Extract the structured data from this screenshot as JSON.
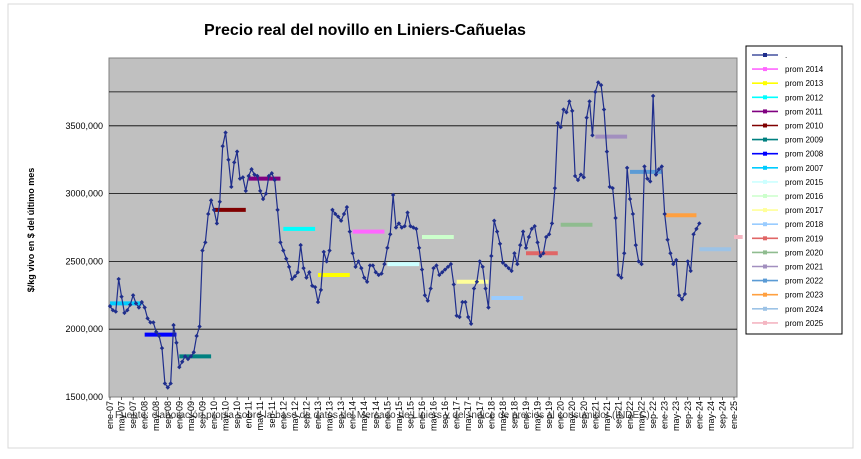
{
  "chart_data": {
    "type": "line",
    "title": "Precio real del novillo en Liniers-Cañuelas",
    "ylabel": "$/kg vivo en $ del último mes",
    "xlabel": "",
    "footnote": "Fuente: elaboración propia sobre la base de datos del Mercado de Liniers y del índice de precios al consumidor (INDEC).",
    "ylim": [
      1500,
      4000
    ],
    "yticks": [
      "1500,000",
      "2000,000",
      "2500,000",
      "3000,000",
      "3500,000"
    ],
    "ytick_values": [
      1500,
      2000,
      2500,
      3000,
      3500
    ],
    "xticks": [
      "ene-07",
      "may-07",
      "sep-07",
      "ene-08",
      "may-08",
      "sep-08",
      "ene-09",
      "may-09",
      "sep-09",
      "ene-10",
      "may-10",
      "sep-10",
      "ene-11",
      "may-11",
      "sep-11",
      "ene-12",
      "may-12",
      "sep-12",
      "ene-13",
      "may-13",
      "sep-13",
      "ene-14",
      "may-14",
      "sep-14",
      "ene-15",
      "may-15",
      "sep-15",
      "ene-16",
      "may-16",
      "sep-16",
      "ene-17",
      "may-17",
      "sep-17",
      "ene-18",
      "may-18",
      "sep-18",
      "ene-19",
      "may-19",
      "sep-19",
      "ene-20",
      "may-20",
      "sep-20",
      "ene-21",
      "may-21",
      "sep-21",
      "ene-22",
      "may-22",
      "sep-22",
      "ene-23",
      "may-23",
      "sep-23",
      "ene-24",
      "may-24",
      "sep-24",
      "ene-25"
    ],
    "grid": true,
    "legend_position": "right",
    "colors": {
      "plot_bg": "#c0c0c0",
      "series": "#1f2e8c",
      "grid": "#000000"
    },
    "series": [
      {
        "name": ".",
        "start": "ene-07",
        "values": [
          2170,
          2140,
          2130,
          2370,
          2240,
          2120,
          2140,
          2180,
          2250,
          2190,
          2160,
          2200,
          2160,
          2080,
          2050,
          2050,
          1980,
          1950,
          1860,
          1600,
          1570,
          1600,
          2030,
          1900,
          1720,
          1760,
          1800,
          1780,
          1800,
          1830,
          1950,
          2020,
          2580,
          2640,
          2850,
          2950,
          2880,
          2780,
          2940,
          3350,
          3450,
          3250,
          3050,
          3230,
          3310,
          3110,
          3120,
          3020,
          3130,
          3180,
          3140,
          3130,
          3020,
          2960,
          3000,
          3130,
          3150,
          3100,
          2880,
          2640,
          2580,
          2520,
          2460,
          2370,
          2390,
          2420,
          2620,
          2450,
          2380,
          2420,
          2320,
          2310,
          2200,
          2290,
          2570,
          2500,
          2580,
          2880,
          2850,
          2830,
          2800,
          2850,
          2900,
          2720,
          2560,
          2460,
          2500,
          2450,
          2380,
          2350,
          2470,
          2470,
          2420,
          2400,
          2410,
          2480,
          2600,
          2700,
          2990,
          2750,
          2780,
          2750,
          2760,
          2860,
          2760,
          2750,
          2740,
          2600,
          2440,
          2250,
          2210,
          2300,
          2450,
          2470,
          2400,
          2420,
          2440,
          2460,
          2480,
          2330,
          2100,
          2090,
          2200,
          2200,
          2090,
          2040,
          2300,
          2350,
          2500,
          2460,
          2300,
          2160,
          2540,
          2800,
          2720,
          2630,
          2490,
          2470,
          2450,
          2430,
          2560,
          2480,
          2620,
          2720,
          2600,
          2680,
          2740,
          2760,
          2640,
          2540,
          2560,
          2680,
          2700,
          2780,
          3040,
          3520,
          3490,
          3620,
          3600,
          3680,
          3610,
          3130,
          3100,
          3140,
          3120,
          3560,
          3680,
          3430,
          3750,
          3820,
          3800,
          3620,
          3310,
          3050,
          3040,
          2820,
          2400,
          2380,
          2560,
          3190,
          2960,
          2850,
          2620,
          2500,
          2480,
          3200,
          3110,
          3090,
          3720,
          3140,
          3180,
          3200,
          2850,
          2660,
          2560,
          2480,
          2510,
          2250,
          2220,
          2260,
          2500,
          2430,
          2700,
          2740,
          2780
        ]
      }
    ],
    "averages": [
      {
        "name": "prom 2014",
        "color": "#ff66ff",
        "value": 2720,
        "start": "ene-14",
        "end": "dic-14"
      },
      {
        "name": "prom 2013",
        "color": "#ffff00",
        "value": 2400,
        "start": "ene-13",
        "end": "dic-13"
      },
      {
        "name": "prom 2012",
        "color": "#00ffff",
        "value": 2740,
        "start": "ene-12",
        "end": "dic-12"
      },
      {
        "name": "prom 2011",
        "color": "#800080",
        "value": 3110,
        "start": "ene-11",
        "end": "dic-11"
      },
      {
        "name": "prom 2010",
        "color": "#800000",
        "value": 2880,
        "start": "ene-10",
        "end": "dic-10"
      },
      {
        "name": "prom 2009",
        "color": "#008080",
        "value": 1800,
        "start": "ene-09",
        "end": "dic-09"
      },
      {
        "name": "prom 2008",
        "color": "#0000ff",
        "value": 1960,
        "start": "ene-08",
        "end": "dic-08"
      },
      {
        "name": "prom 2007",
        "color": "#00ccff",
        "value": 2190,
        "start": "ene-07",
        "end": "dic-07"
      },
      {
        "name": "prom 2015",
        "color": "#ccffff",
        "value": 2480,
        "start": "ene-15",
        "end": "dic-15"
      },
      {
        "name": "prom 2016",
        "color": "#ccffcc",
        "value": 2680,
        "start": "ene-16",
        "end": "dic-16"
      },
      {
        "name": "prom 2017",
        "color": "#ffff99",
        "value": 2350,
        "start": "ene-17",
        "end": "dic-17"
      },
      {
        "name": "prom 2018",
        "color": "#99ccff",
        "value": 2230,
        "start": "ene-18",
        "end": "dic-18"
      },
      {
        "name": "prom 2019",
        "color": "#e06666",
        "value": 2560,
        "start": "ene-19",
        "end": "dic-19"
      },
      {
        "name": "prom 2020",
        "color": "#8fbc8f",
        "value": 2770,
        "start": "ene-20",
        "end": "dic-20"
      },
      {
        "name": "prom 2021",
        "color": "#a28fbf",
        "value": 3420,
        "start": "ene-21",
        "end": "dic-21"
      },
      {
        "name": "prom 2022",
        "color": "#5b9bd5",
        "value": 3160,
        "start": "ene-22",
        "end": "dic-22"
      },
      {
        "name": "prom 2023",
        "color": "#ffa040",
        "value": 2840,
        "start": "ene-23",
        "end": "dic-23"
      },
      {
        "name": "prom 2024",
        "color": "#9dc3e6",
        "value": 2590,
        "start": "ene-24",
        "end": "dic-24"
      },
      {
        "name": "prom 2025",
        "color": "#f4b6c2",
        "value": 2680,
        "start": "ene-25",
        "end": "abr-25"
      }
    ]
  }
}
